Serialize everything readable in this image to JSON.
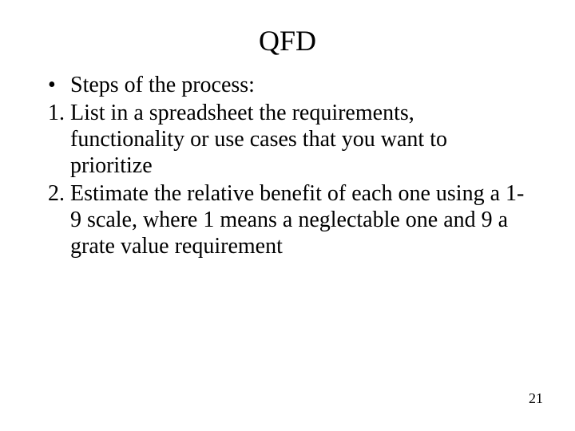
{
  "title": "QFD",
  "bullet_label": "Steps of the process:",
  "step1": "1. List in a spreadsheet the requirements, functionality or use cases that you want to prioritize",
  "step2": "2. Estimate the relative benefit  of each one using a 1-9 scale, where 1 means a neglectable one and 9 a grate value requirement",
  "page_number": "21",
  "colors": {
    "background": "#ffffff",
    "text": "#000000"
  },
  "fonts": {
    "family": "Times New Roman",
    "title_size_pt": 36,
    "body_size_pt": 28,
    "pagenum_size_pt": 18
  }
}
